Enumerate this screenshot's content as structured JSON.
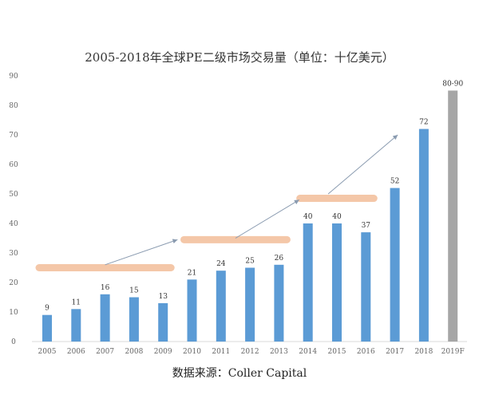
{
  "chart_data": {
    "type": "bar",
    "title": "2005-2018年全球PE二级市场交易量（单位：十亿美元）",
    "source": "数据来源：Coller Capital",
    "categories": [
      "2005",
      "2006",
      "2007",
      "2008",
      "2009",
      "2010",
      "2011",
      "2012",
      "2013",
      "2014",
      "2015",
      "2016",
      "2017",
      "2018",
      "2019F"
    ],
    "values": [
      9,
      11,
      16,
      15,
      13,
      21,
      24,
      25,
      26,
      40,
      40,
      37,
      52,
      72,
      85
    ],
    "data_labels": [
      "9",
      "11",
      "16",
      "15",
      "13",
      "21",
      "24",
      "25",
      "26",
      "40",
      "40",
      "37",
      "52",
      "72",
      "80-90"
    ],
    "forecast_index": 14,
    "ylim": [
      0,
      90
    ],
    "yticks": [
      0,
      10,
      20,
      30,
      40,
      50,
      60,
      70,
      80,
      90
    ],
    "grid": false,
    "colors": {
      "bar": "#5b9bd5",
      "forecast": "#a6a6a6",
      "band": "#f4c7a8",
      "arrow": "#8a9bb0"
    },
    "annotations": {
      "bands": [
        {
          "from": "2005",
          "to": "2009",
          "level": 25
        },
        {
          "from": "2010",
          "to": "2013",
          "level": 34.5
        },
        {
          "from": "2014",
          "to": "2016",
          "level": 48.5
        }
      ],
      "arrows": [
        {
          "from": [
            "2007",
            26
          ],
          "to": [
            "2009.5",
            34.5
          ]
        },
        {
          "from": [
            "2011.5",
            35
          ],
          "to": [
            "2013.7",
            48
          ]
        },
        {
          "from": [
            "2014.7",
            50
          ],
          "to": [
            "2017.1",
            70
          ]
        }
      ]
    }
  }
}
